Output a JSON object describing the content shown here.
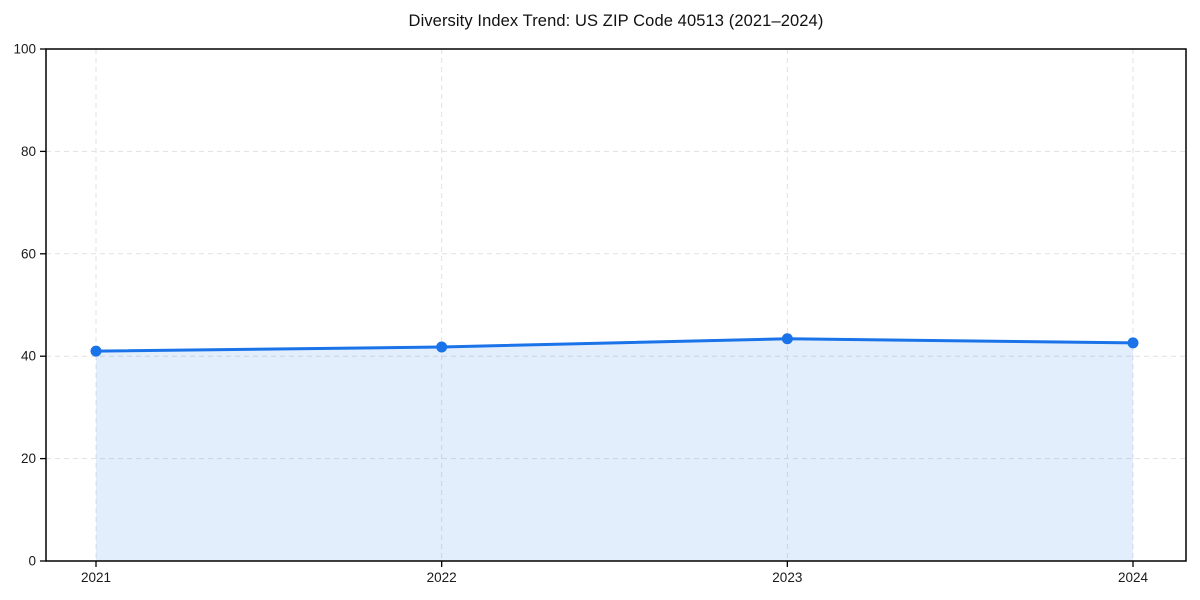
{
  "figure": {
    "background": "#ffffff"
  },
  "chart_data": {
    "type": "line",
    "title": "Diversity Index Trend: US ZIP Code 40513 (2021–2024)",
    "x": [
      "2021",
      "2022",
      "2023",
      "2024"
    ],
    "series": [
      {
        "name": "Diversity Index",
        "values": [
          41.0,
          41.8,
          43.4,
          42.6
        ],
        "color": "#1a73e8",
        "line_width": 3,
        "marker": "circle",
        "marker_radius": 5.5,
        "area_fill": true,
        "fill_color": "rgba(26,115,232,0.12)"
      }
    ],
    "xlabel": "",
    "ylabel": "",
    "ylim": [
      0,
      100
    ],
    "yticks": [
      0,
      20,
      40,
      60,
      80,
      100
    ],
    "grid": {
      "show": true,
      "style": "dashed",
      "color": "#e1e1e1"
    },
    "legend": {
      "show": false
    },
    "axis_color": "#000000",
    "tick_label_color": "#1a1a1a",
    "tick_font_size": 13.5
  }
}
